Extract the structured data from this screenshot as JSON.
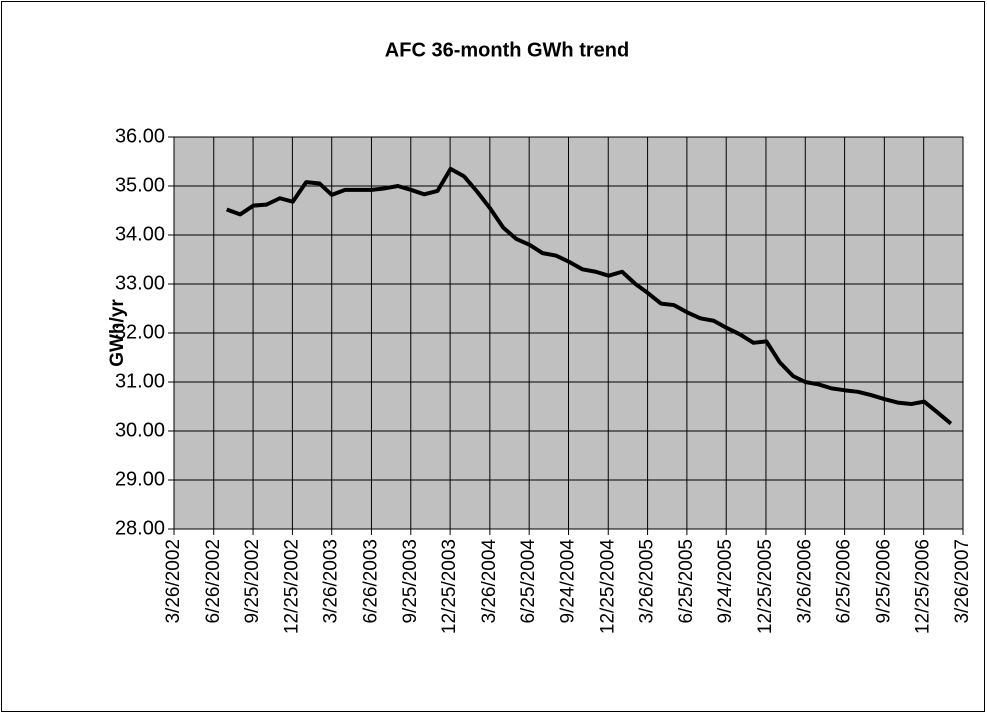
{
  "chart_data": {
    "type": "line",
    "title": "AFC 36-month GWh trend",
    "y_label": "GWh/yr",
    "x": [
      "7/26/2002",
      "8/26/2002",
      "9/26/2002",
      "10/26/2002",
      "11/26/2002",
      "12/26/2002",
      "1/26/2003",
      "2/26/2003",
      "3/26/2003",
      "4/26/2003",
      "5/26/2003",
      "6/26/2003",
      "7/26/2003",
      "8/26/2003",
      "9/26/2003",
      "10/26/2003",
      "11/26/2003",
      "12/26/2003",
      "1/26/2004",
      "2/26/2004",
      "3/26/2004",
      "4/26/2004",
      "5/26/2004",
      "6/26/2004",
      "7/26/2004",
      "8/26/2004",
      "9/26/2004",
      "10/26/2004",
      "11/26/2004",
      "12/26/2004",
      "1/26/2005",
      "2/26/2005",
      "3/26/2005",
      "4/26/2005",
      "5/26/2005",
      "6/26/2005",
      "7/26/2005",
      "8/26/2005",
      "9/26/2005",
      "10/26/2005",
      "11/26/2005",
      "12/26/2005",
      "1/26/2006",
      "2/26/2006",
      "3/26/2006",
      "4/26/2006",
      "5/26/2006",
      "6/26/2006",
      "7/26/2006",
      "8/26/2006",
      "9/26/2006",
      "10/26/2006",
      "11/26/2006",
      "12/26/2006",
      "1/26/2007",
      "2/26/2007"
    ],
    "series": [
      {
        "name": "GWh/yr",
        "color": "#000000",
        "values": [
          34.52,
          34.42,
          34.6,
          34.62,
          34.75,
          34.68,
          35.08,
          35.05,
          34.82,
          34.92,
          34.92,
          34.92,
          34.95,
          35.0,
          34.92,
          34.83,
          34.9,
          35.35,
          35.2,
          34.88,
          34.55,
          34.15,
          33.92,
          33.8,
          33.63,
          33.58,
          33.45,
          33.3,
          33.25,
          33.17,
          33.25,
          33.0,
          32.82,
          32.6,
          32.57,
          32.42,
          32.3,
          32.25,
          32.1,
          31.97,
          31.8,
          31.83,
          31.4,
          31.12,
          31.0,
          30.95,
          30.87,
          30.83,
          30.8,
          30.73,
          30.65,
          30.58,
          30.55,
          30.6,
          30.38,
          30.15
        ]
      }
    ],
    "xlim": [
      "3/26/2002",
      "3/26/2007"
    ],
    "xticks": [
      "3/26/2002",
      "6/26/2002",
      "9/25/2002",
      "12/25/2002",
      "3/26/2003",
      "6/26/2003",
      "9/25/2003",
      "12/25/2003",
      "3/26/2004",
      "6/25/2004",
      "9/24/2004",
      "12/25/2004",
      "3/26/2005",
      "6/25/2005",
      "9/24/2005",
      "12/25/2005",
      "3/26/2006",
      "6/25/2006",
      "9/25/2006",
      "12/25/2006",
      "3/26/2007"
    ],
    "ylim": [
      28,
      36
    ],
    "yticks": [
      {
        "value": 28,
        "label": "28.00"
      },
      {
        "value": 29,
        "label": "29.00"
      },
      {
        "value": 30,
        "label": "30.00"
      },
      {
        "value": 31,
        "label": "31.00"
      },
      {
        "value": 32,
        "label": "32.00"
      },
      {
        "value": 33,
        "label": "33.00"
      },
      {
        "value": 34,
        "label": "34.00"
      },
      {
        "value": 35,
        "label": "35.00"
      },
      {
        "value": 36,
        "label": "36.00"
      }
    ],
    "grid": true,
    "plot_background": "#c0c0c0"
  }
}
